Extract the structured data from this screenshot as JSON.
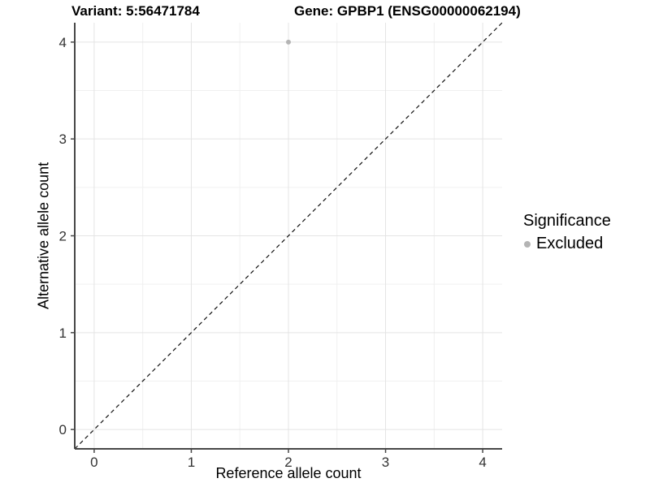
{
  "chart_data": {
    "type": "scatter",
    "title_left": "Variant: 5:56471784",
    "title_right": "Gene: GPBP1 (ENSG00000062194)",
    "xlabel": "Reference allele count",
    "ylabel": "Alternative allele count",
    "xlim": [
      -0.2,
      4.2
    ],
    "ylim": [
      -0.2,
      4.2
    ],
    "x_ticks": [
      0,
      1,
      2,
      3,
      4
    ],
    "y_ticks": [
      0,
      1,
      2,
      3,
      4
    ],
    "minor_grid_step": 0.5,
    "grid": true,
    "reference_line": {
      "type": "identity",
      "style": "dashed",
      "from": -0.2,
      "to": 4.2
    },
    "series": [
      {
        "name": "Excluded",
        "marker": "circle",
        "color": "#b4b4b4",
        "points": [
          [
            2,
            4
          ]
        ]
      }
    ],
    "legend": {
      "title": "Significance",
      "position": "right",
      "entries": [
        {
          "label": "Excluded",
          "color": "#b4b4b4"
        }
      ]
    }
  },
  "colors": {
    "background": "#ffffff",
    "axis_line": "#474747",
    "tick_label": "#333333",
    "grid_major": "#e4e4e4",
    "grid_minor": "#f0f0f0",
    "identity_line": "#111111",
    "point": "#b4b4b4"
  }
}
